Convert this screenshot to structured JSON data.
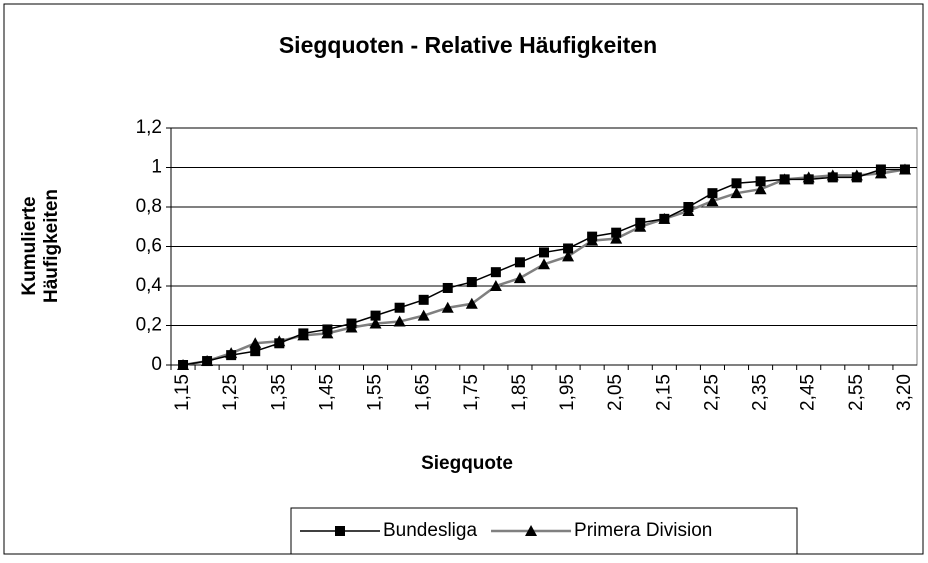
{
  "chart_data": {
    "type": "line",
    "title": "Siegquoten - Relative Häufigkeiten",
    "x_label": "Siegquote",
    "y_label": [
      "Kumulierte",
      "Häufigkeiten"
    ],
    "categories": [
      "1,15",
      null,
      "1,25",
      null,
      "1,35",
      null,
      "1,45",
      null,
      "1,55",
      null,
      "1,65",
      null,
      "1,75",
      null,
      "1,85",
      null,
      "1,95",
      null,
      "2,05",
      null,
      "2,15",
      null,
      "2,25",
      null,
      "2,35",
      null,
      "2,45",
      null,
      "2,55",
      null,
      "3,20"
    ],
    "series": [
      {
        "name": "Bundesliga",
        "color": "#000000",
        "marker": "square",
        "values": [
          0,
          0.02,
          0.05,
          0.07,
          0.11,
          0.16,
          0.18,
          0.21,
          0.25,
          0.29,
          0.33,
          0.39,
          0.42,
          0.47,
          0.52,
          0.57,
          0.59,
          0.65,
          0.67,
          0.72,
          0.74,
          0.8,
          0.87,
          0.92,
          0.93,
          0.94,
          0.94,
          0.95,
          0.95,
          0.99,
          0.99
        ]
      },
      {
        "name": "Primera Division",
        "color": "#808080",
        "marker": "triangle",
        "values": [
          0,
          0.02,
          0.06,
          0.11,
          0.12,
          0.15,
          0.16,
          0.19,
          0.21,
          0.22,
          0.25,
          0.29,
          0.31,
          0.4,
          0.44,
          0.51,
          0.55,
          0.63,
          0.64,
          0.7,
          0.74,
          0.78,
          0.83,
          0.87,
          0.89,
          0.94,
          0.95,
          0.96,
          0.96,
          0.97,
          0.99
        ]
      }
    ],
    "ylim": [
      0,
      1.2
    ],
    "yticks": [
      0,
      {
        "value": 0.2,
        "label": "0,2"
      },
      {
        "value": 0.4,
        "label": "0,4"
      },
      {
        "value": 0.6,
        "label": "0,6"
      },
      {
        "value": 0.8,
        "label": "0,8"
      },
      1,
      {
        "value": 1.2,
        "label": "1,2"
      }
    ],
    "grid": true,
    "legend": "bottom"
  }
}
